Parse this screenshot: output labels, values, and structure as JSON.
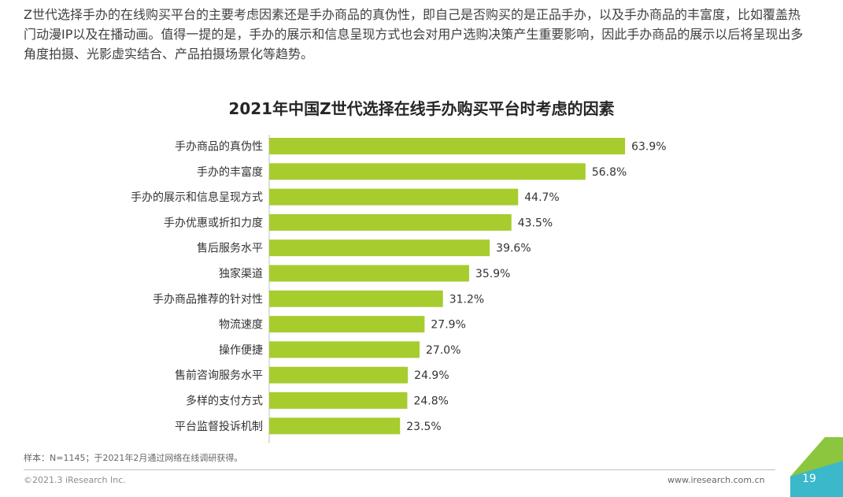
{
  "intro_text": "Z世代选择手办的在线购买平台的主要考虑因素还是手办商品的真伪性，即自己是否购买的是正品手办，以及手办商品的丰富度，比如覆盖热门动漫IP以及在播动画。值得一提的是，手办的展示和信息呈现方式也会对用户选购决策产生重要影响，因此手办商品的展示以后将呈现出多角度拍摄、光影虚实结合、产品拍摄场景化等趋势。",
  "chart_data": {
    "type": "bar",
    "orientation": "horizontal",
    "title": "2021年中国Z世代选择在线手办购买平台时考虑的因素",
    "categories": [
      "手办商品的真伪性",
      "手办的丰富度",
      "手办的展示和信息呈现方式",
      "手办优惠或折扣力度",
      "售后服务水平",
      "独家渠道",
      "手办商品推荐的针对性",
      "物流速度",
      "操作便捷",
      "售前咨询服务水平",
      "多样的支付方式",
      "平台监督投诉机制"
    ],
    "values": [
      63.9,
      56.8,
      44.7,
      43.5,
      39.6,
      35.9,
      31.2,
      27.9,
      27.0,
      24.9,
      24.8,
      23.5
    ],
    "value_labels": [
      "63.9%",
      "56.8%",
      "44.7%",
      "43.5%",
      "39.6%",
      "35.9%",
      "31.2%",
      "27.9%",
      "27.0%",
      "24.9%",
      "24.8%",
      "23.5%"
    ],
    "xlim": [
      0,
      80
    ],
    "xlabel": "",
    "ylabel": "",
    "grid": false,
    "bar_color": "#a6cc2e"
  },
  "note": "样本：N=1145；于2021年2月通过网络在线调研获得。",
  "copyright": "©2021.3 iResearch Inc.",
  "website": "www.iresearch.com.cn",
  "page_number": "19",
  "colors": {
    "bar": "#a6cc2e",
    "badge_green": "#8cc63f",
    "badge_teal": "#3bb8c9"
  }
}
